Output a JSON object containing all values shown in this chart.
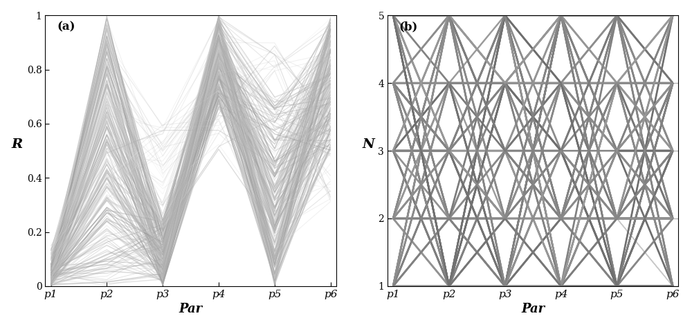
{
  "title_a": "(a)",
  "title_b": "(b)",
  "xlabel": "Par",
  "ylabel_a": "R",
  "ylabel_b": "N",
  "x_labels": [
    "p1",
    "p2",
    "p3",
    "p4",
    "p5",
    "p6"
  ],
  "ylim_a": [
    0,
    1
  ],
  "ylim_b": [
    1,
    5
  ],
  "seed": 42,
  "figsize": [
    10.0,
    4.73
  ],
  "dpi": 100
}
